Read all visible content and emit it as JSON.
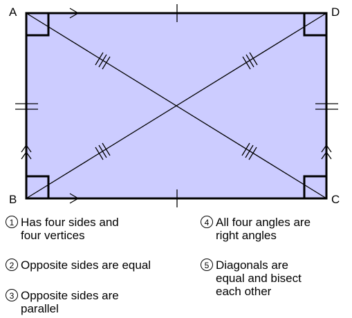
{
  "vertices": {
    "a": "A",
    "b": "B",
    "c": "C",
    "d": "D"
  },
  "colors": {
    "fill": "#ccccff",
    "stroke": "#000000"
  },
  "properties": [
    {
      "num": "1",
      "text": "Has four sides and\nfour vertices"
    },
    {
      "num": "2",
      "text": "Opposite sides are equal"
    },
    {
      "num": "3",
      "text": "Opposite sides are\nparallel"
    },
    {
      "num": "4",
      "text": "All four angles are\nright angles"
    },
    {
      "num": "5",
      "text": "Diagonals are\nequal and bisect\neach other"
    }
  ]
}
